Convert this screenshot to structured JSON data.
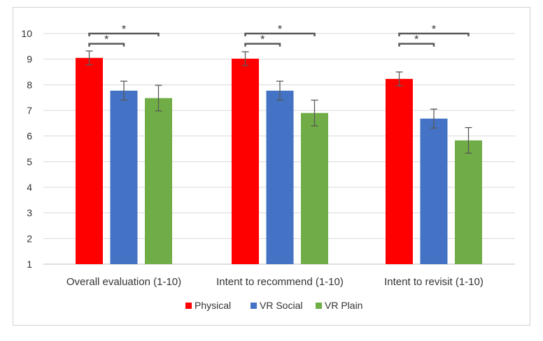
{
  "chart_data": {
    "type": "bar",
    "title": "",
    "xlabel": "",
    "ylabel": "",
    "ylim": [
      1,
      10
    ],
    "yticks": [
      "1",
      "2",
      "3",
      "4",
      "5",
      "6",
      "7",
      "8",
      "9",
      "10"
    ],
    "categories": [
      "Overall evaluation (1-10)",
      "Intent to recommend (1-10)",
      "Intent to revisit (1-10)"
    ],
    "series": [
      {
        "name": "Physical",
        "color": "#ff0000",
        "values": [
          9.05,
          9.02,
          8.23
        ],
        "error": [
          0.27,
          0.27,
          0.27
        ]
      },
      {
        "name": "VR Social",
        "color": "#4472c4",
        "values": [
          7.77,
          7.77,
          6.68
        ],
        "error": [
          0.37,
          0.37,
          0.37
        ]
      },
      {
        "name": "VR Plain",
        "color": "#70ad47",
        "values": [
          7.48,
          6.9,
          5.83
        ],
        "error": [
          0.5,
          0.5,
          0.5
        ]
      }
    ],
    "grid": true,
    "legend_position": "bottom",
    "significance": [
      {
        "category": 0,
        "from_series": 0,
        "to_series": 1,
        "level": 9.6,
        "label": "*"
      },
      {
        "category": 0,
        "from_series": 0,
        "to_series": 2,
        "level": 10.0,
        "label": "*"
      },
      {
        "category": 1,
        "from_series": 0,
        "to_series": 1,
        "level": 9.6,
        "label": "*"
      },
      {
        "category": 1,
        "from_series": 0,
        "to_series": 2,
        "level": 10.0,
        "label": "*"
      },
      {
        "category": 2,
        "from_series": 0,
        "to_series": 1,
        "level": 9.6,
        "label": "*"
      },
      {
        "category": 2,
        "from_series": 0,
        "to_series": 2,
        "level": 10.0,
        "label": "*"
      }
    ]
  }
}
